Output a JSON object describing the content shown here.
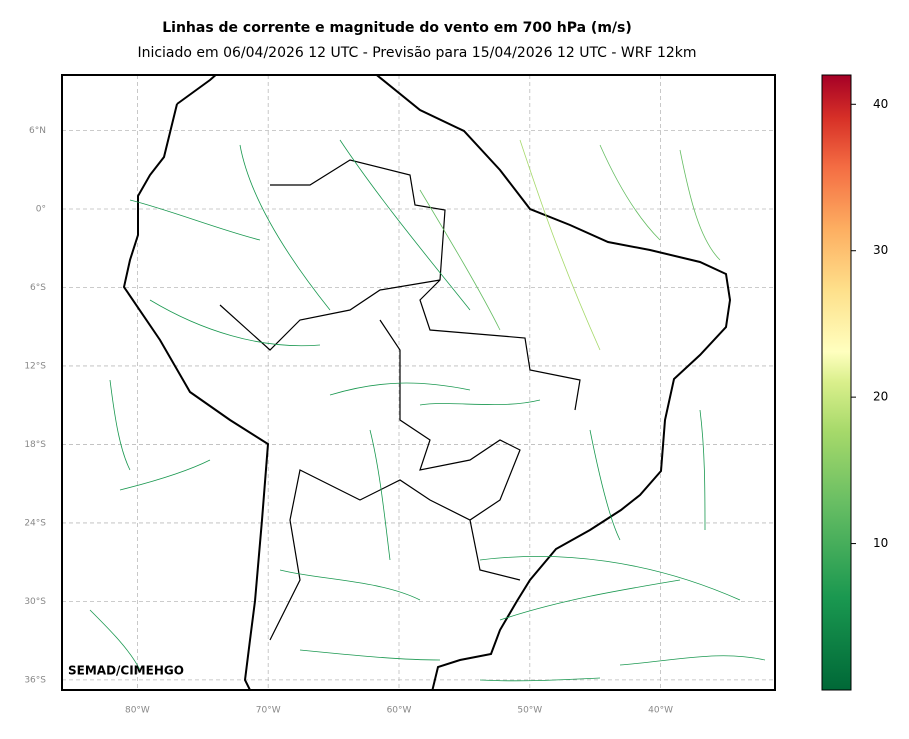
{
  "header": {
    "title": "Linhas de corrente e magnitude do vento em 700 hPa (m/s)",
    "subtitle": "Iniciado em 06/04/2026 12 UTC - Previsão para 15/04/2026 12 UTC - WRF 12km"
  },
  "map": {
    "lat_ticks": [
      {
        "value": 6,
        "label": "6°N"
      },
      {
        "value": 0,
        "label": "0°"
      },
      {
        "value": -6,
        "label": "6°S"
      },
      {
        "value": -12,
        "label": "12°S"
      },
      {
        "value": -18,
        "label": "18°S"
      },
      {
        "value": -24,
        "label": "24°S"
      },
      {
        "value": -30,
        "label": "30°S"
      },
      {
        "value": -36,
        "label": "36°S"
      }
    ],
    "lon_ticks": [
      {
        "value": -80,
        "label": "80°W"
      },
      {
        "value": -70,
        "label": "70°W"
      },
      {
        "value": -60,
        "label": "60°W"
      },
      {
        "value": -50,
        "label": "50°W"
      },
      {
        "value": -40,
        "label": "40°W"
      }
    ],
    "credit": "SEMAD/CIMEHGO"
  },
  "colorbar": {
    "range": [
      0,
      42
    ],
    "ticks": [
      10,
      20,
      30,
      40
    ]
  }
}
